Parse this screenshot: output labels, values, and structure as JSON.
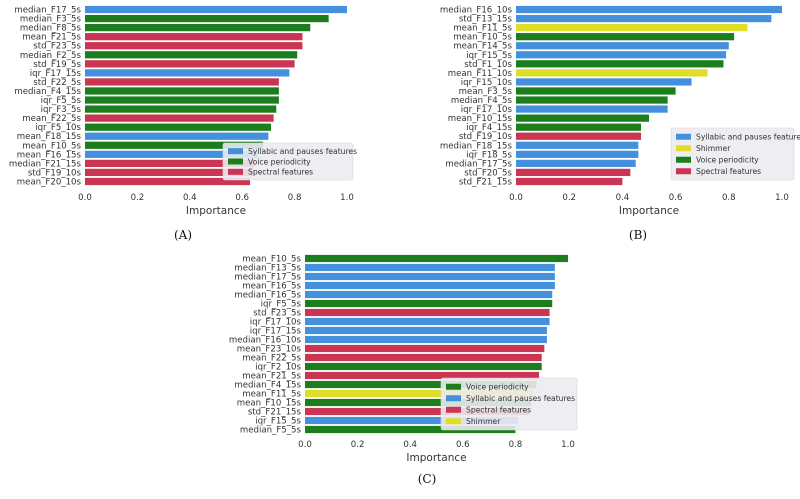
{
  "colors": {
    "Syllabic and pauses features": "#4590dc",
    "Voice periodicity": "#1b7d1b",
    "Spectral features": "#c93552",
    "Shimmer": "#dede29",
    "background": "#ffffff",
    "legend_bg": "#ebebf1"
  },
  "chart_data": [
    {
      "type": "bar",
      "orientation": "horizontal",
      "caption": "(A)",
      "xlabel": "Importance",
      "xlim": [
        0,
        1.0
      ],
      "xticks": [
        "0.0",
        "0.2",
        "0.4",
        "0.6",
        "0.8",
        "1.0"
      ],
      "legend_position": "lower-right",
      "legend": [
        "Syllabic and pauses features",
        "Voice periodicity",
        "Spectral features"
      ],
      "bars": [
        {
          "label": "median_F17_5s",
          "value": 1.0,
          "group": "Syllabic and pauses features"
        },
        {
          "label": "median_F3_5s",
          "value": 0.93,
          "group": "Voice periodicity"
        },
        {
          "label": "median_F8_5s",
          "value": 0.86,
          "group": "Voice periodicity"
        },
        {
          "label": "mean_F21_5s",
          "value": 0.83,
          "group": "Spectral features"
        },
        {
          "label": "std_F23_5s",
          "value": 0.83,
          "group": "Spectral features"
        },
        {
          "label": "median_F2_5s",
          "value": 0.81,
          "group": "Voice periodicity"
        },
        {
          "label": "std_F19_5s",
          "value": 0.8,
          "group": "Spectral features"
        },
        {
          "label": "iqr_F17_15s",
          "value": 0.78,
          "group": "Syllabic and pauses features"
        },
        {
          "label": "std_F22_5s",
          "value": 0.74,
          "group": "Spectral features"
        },
        {
          "label": "median_F4_15s",
          "value": 0.74,
          "group": "Voice periodicity"
        },
        {
          "label": "iqr_F5_5s",
          "value": 0.74,
          "group": "Voice periodicity"
        },
        {
          "label": "iqr_F3_5s",
          "value": 0.73,
          "group": "Voice periodicity"
        },
        {
          "label": "mean_F22_5s",
          "value": 0.72,
          "group": "Spectral features"
        },
        {
          "label": "iqr_F5_10s",
          "value": 0.71,
          "group": "Voice periodicity"
        },
        {
          "label": "mean_F18_15s",
          "value": 0.7,
          "group": "Syllabic and pauses features"
        },
        {
          "label": "mean_F10_5s",
          "value": 0.68,
          "group": "Voice periodicity"
        },
        {
          "label": "mean_F16_15s",
          "value": 0.66,
          "group": "Syllabic and pauses features"
        },
        {
          "label": "median_F21_15s",
          "value": 0.65,
          "group": "Spectral features"
        },
        {
          "label": "std_F19_10s",
          "value": 0.64,
          "group": "Spectral features"
        },
        {
          "label": "mean_F20_10s",
          "value": 0.63,
          "group": "Spectral features"
        }
      ]
    },
    {
      "type": "bar",
      "orientation": "horizontal",
      "caption": "(B)",
      "xlabel": "Importance",
      "xlim": [
        0,
        1.0
      ],
      "xticks": [
        "0.0",
        "0.2",
        "0.4",
        "0.6",
        "0.8",
        "1.0"
      ],
      "legend_position": "lower-right",
      "legend": [
        "Syllabic and pauses features",
        "Shimmer",
        "Voice periodicity",
        "Spectral features"
      ],
      "bars": [
        {
          "label": "median_F16_10s",
          "value": 1.0,
          "group": "Syllabic and pauses features"
        },
        {
          "label": "std_F13_15s",
          "value": 0.96,
          "group": "Syllabic and pauses features"
        },
        {
          "label": "mean_F11_5s",
          "value": 0.87,
          "group": "Shimmer"
        },
        {
          "label": "mean_F10_5s",
          "value": 0.82,
          "group": "Voice periodicity"
        },
        {
          "label": "mean_F14_5s",
          "value": 0.8,
          "group": "Syllabic and pauses features"
        },
        {
          "label": "iqr_F15_5s",
          "value": 0.79,
          "group": "Syllabic and pauses features"
        },
        {
          "label": "std_F1_10s",
          "value": 0.78,
          "group": "Voice periodicity"
        },
        {
          "label": "mean_F11_10s",
          "value": 0.72,
          "group": "Shimmer"
        },
        {
          "label": "iqr_F15_10s",
          "value": 0.66,
          "group": "Syllabic and pauses features"
        },
        {
          "label": "mean_F3_5s",
          "value": 0.6,
          "group": "Voice periodicity"
        },
        {
          "label": "median_F4_5s",
          "value": 0.57,
          "group": "Voice periodicity"
        },
        {
          "label": "iqr_F17_10s",
          "value": 0.57,
          "group": "Syllabic and pauses features"
        },
        {
          "label": "mean_F10_15s",
          "value": 0.5,
          "group": "Voice periodicity"
        },
        {
          "label": "iqr_F4_15s",
          "value": 0.47,
          "group": "Voice periodicity"
        },
        {
          "label": "std_F19_10s",
          "value": 0.47,
          "group": "Spectral features"
        },
        {
          "label": "median_F18_15s",
          "value": 0.46,
          "group": "Syllabic and pauses features"
        },
        {
          "label": "iqr_F18_5s",
          "value": 0.46,
          "group": "Syllabic and pauses features"
        },
        {
          "label": "median_F17_5s",
          "value": 0.45,
          "group": "Syllabic and pauses features"
        },
        {
          "label": "std_F20_5s",
          "value": 0.43,
          "group": "Spectral features"
        },
        {
          "label": "std_F21_15s",
          "value": 0.4,
          "group": "Spectral features"
        }
      ]
    },
    {
      "type": "bar",
      "orientation": "horizontal",
      "caption": "(C)",
      "xlabel": "Importance",
      "xlim": [
        0,
        1.0
      ],
      "xticks": [
        "0.0",
        "0.2",
        "0.4",
        "0.6",
        "0.8",
        "1.0"
      ],
      "legend_position": "lower-right",
      "legend": [
        "Voice periodicity",
        "Syllabic and pauses features",
        "Spectral features",
        "Shimmer"
      ],
      "bars": [
        {
          "label": "mean_F10_5s",
          "value": 1.0,
          "group": "Voice periodicity"
        },
        {
          "label": "median_F13_5s",
          "value": 0.95,
          "group": "Syllabic and pauses features"
        },
        {
          "label": "median_F17_5s",
          "value": 0.95,
          "group": "Syllabic and pauses features"
        },
        {
          "label": "mean_F16_5s",
          "value": 0.95,
          "group": "Syllabic and pauses features"
        },
        {
          "label": "median_F16_5s",
          "value": 0.94,
          "group": "Syllabic and pauses features"
        },
        {
          "label": "iqr_F5_5s",
          "value": 0.94,
          "group": "Voice periodicity"
        },
        {
          "label": "std_F23_5s",
          "value": 0.93,
          "group": "Spectral features"
        },
        {
          "label": "iqr_F17_10s",
          "value": 0.93,
          "group": "Syllabic and pauses features"
        },
        {
          "label": "iqr_F17_15s",
          "value": 0.92,
          "group": "Syllabic and pauses features"
        },
        {
          "label": "median_F16_10s",
          "value": 0.92,
          "group": "Syllabic and pauses features"
        },
        {
          "label": "mean_F23_10s",
          "value": 0.91,
          "group": "Spectral features"
        },
        {
          "label": "mean_F22_5s",
          "value": 0.9,
          "group": "Spectral features"
        },
        {
          "label": "iqr_F2_10s",
          "value": 0.9,
          "group": "Voice periodicity"
        },
        {
          "label": "mean_F21_5s",
          "value": 0.89,
          "group": "Spectral features"
        },
        {
          "label": "median_F4_15s",
          "value": 0.88,
          "group": "Voice periodicity"
        },
        {
          "label": "mean_F11_5s",
          "value": 0.87,
          "group": "Shimmer"
        },
        {
          "label": "mean_F10_15s",
          "value": 0.86,
          "group": "Voice periodicity"
        },
        {
          "label": "std_F21_15s",
          "value": 0.85,
          "group": "Spectral features"
        },
        {
          "label": "iqr_F15_5s",
          "value": 0.81,
          "group": "Syllabic and pauses features"
        },
        {
          "label": "median_F5_5s",
          "value": 0.8,
          "group": "Voice periodicity"
        }
      ]
    }
  ]
}
